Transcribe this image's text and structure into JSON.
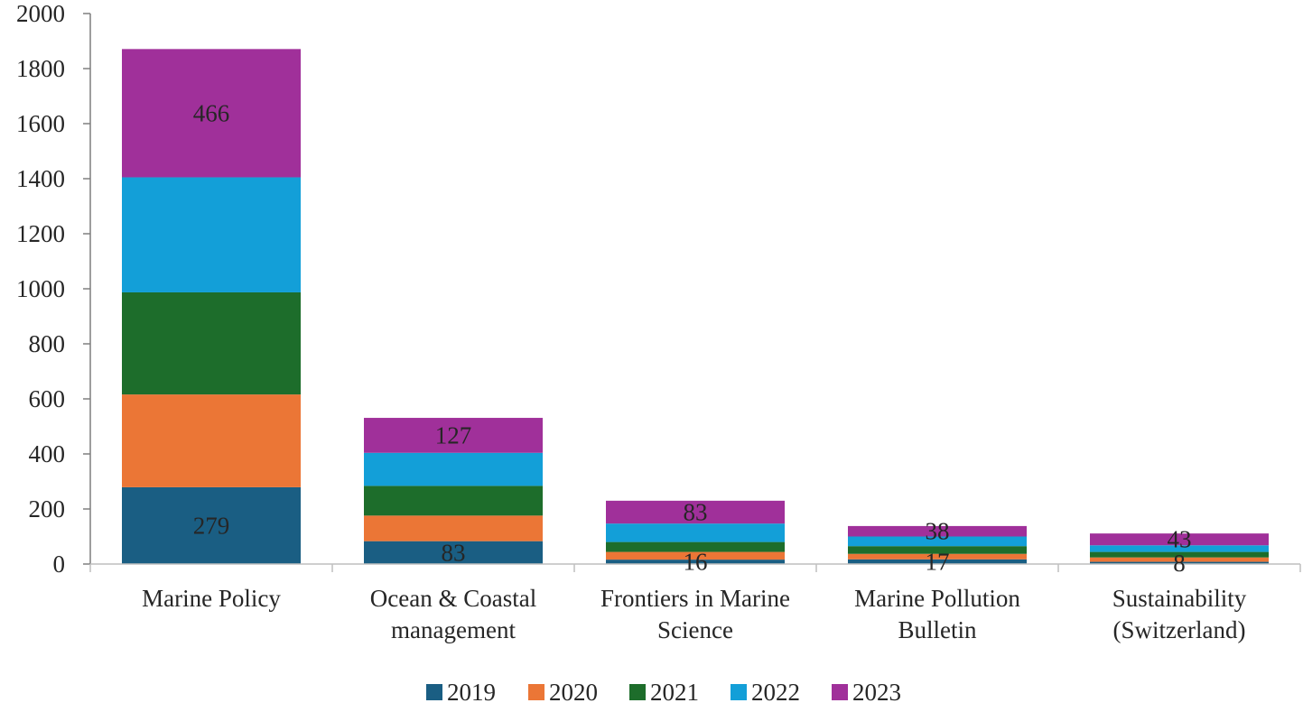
{
  "chart_data": {
    "type": "bar",
    "stacked": true,
    "categories": [
      [
        "Marine Policy"
      ],
      [
        "Ocean & Coastal",
        "management"
      ],
      [
        "Frontiers in Marine",
        "Science"
      ],
      [
        "Marine Pollution",
        "Bulletin"
      ],
      [
        "Sustainability",
        "(Switzerland)"
      ]
    ],
    "series": [
      {
        "name": "2019",
        "color": "#1a5e83",
        "values": [
          279,
          83,
          16,
          17,
          8
        ]
      },
      {
        "name": "2020",
        "color": "#eb7636",
        "values": [
          337,
          93,
          28,
          20,
          16
        ]
      },
      {
        "name": "2021",
        "color": "#1d6d2b",
        "values": [
          371,
          108,
          36,
          28,
          20
        ]
      },
      {
        "name": "2022",
        "color": "#139fd8",
        "values": [
          418,
          120,
          67,
          35,
          24
        ]
      },
      {
        "name": "2023",
        "color": "#a0309a",
        "values": [
          466,
          127,
          83,
          38,
          43
        ]
      }
    ],
    "data_labels": [
      {
        "category_index": 0,
        "series_index": 0,
        "text": "279"
      },
      {
        "category_index": 0,
        "series_index": 4,
        "text": "466"
      },
      {
        "category_index": 1,
        "series_index": 0,
        "text": "83"
      },
      {
        "category_index": 1,
        "series_index": 4,
        "text": "127"
      },
      {
        "category_index": 2,
        "series_index": 0,
        "text": "16"
      },
      {
        "category_index": 2,
        "series_index": 4,
        "text": "83"
      },
      {
        "category_index": 3,
        "series_index": 0,
        "text": "17"
      },
      {
        "category_index": 3,
        "series_index": 4,
        "text": "38"
      },
      {
        "category_index": 4,
        "series_index": 0,
        "text": "8"
      },
      {
        "category_index": 4,
        "series_index": 4,
        "text": "43"
      }
    ],
    "yticks": [
      "0",
      "200",
      "400",
      "600",
      "800",
      "1000",
      "1200",
      "1400",
      "1600",
      "1800",
      "2000"
    ],
    "ylim": [
      0,
      2000
    ],
    "title": "",
    "xlabel": "",
    "ylabel": "",
    "grid": false,
    "legend_position": "bottom"
  }
}
